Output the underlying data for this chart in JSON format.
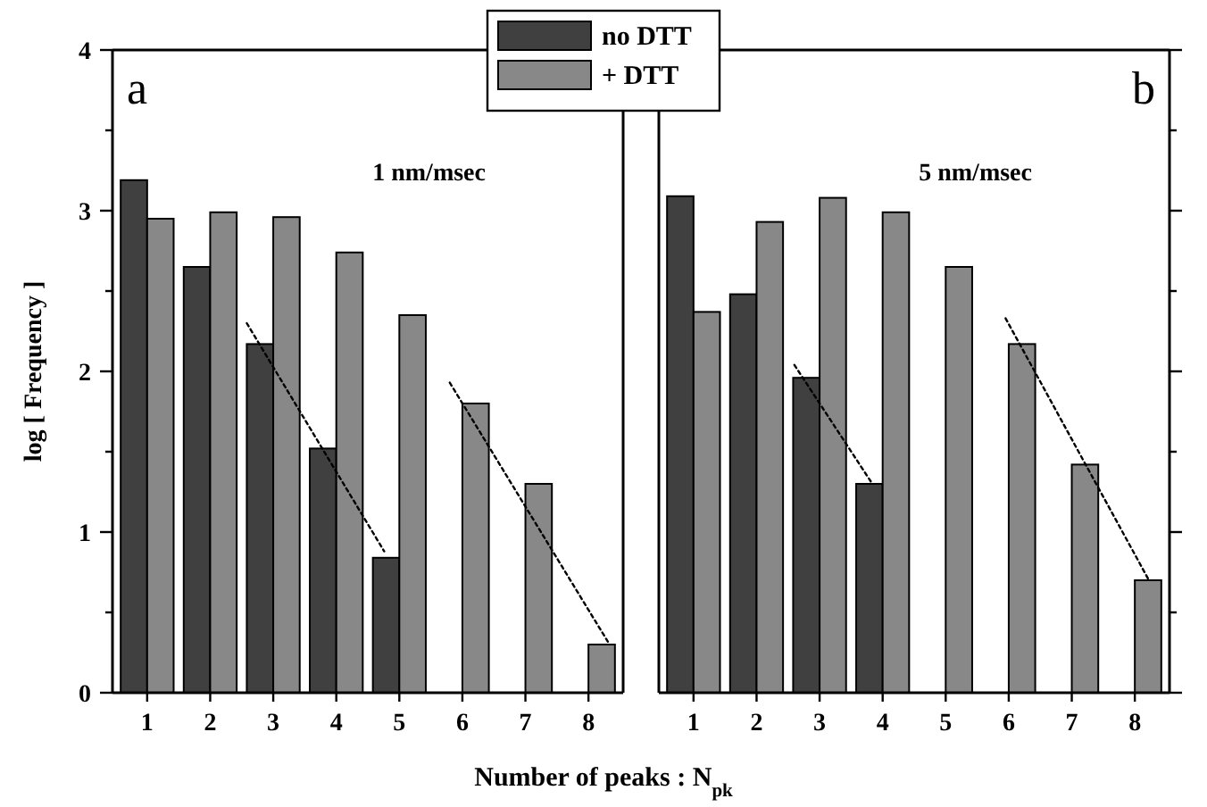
{
  "chart_data": [
    {
      "type": "bar",
      "xlabel": "Number of peaks : N$_{pk}$",
      "ylabel": "log [ Frequency ]",
      "annotations": [
        "a",
        "1 nm/msec"
      ],
      "x": [
        1,
        2,
        3,
        4,
        5,
        6,
        7,
        8
      ],
      "xlim": [
        0.45,
        8.55
      ],
      "xticks": [
        1,
        2,
        3,
        4,
        5,
        6,
        7,
        8
      ],
      "ylim": [
        0,
        4
      ],
      "yticks": [
        0,
        {
          "value": 0.5,
          "label": null
        },
        1,
        {
          "value": 1.5,
          "label": null
        },
        2,
        {
          "value": 2.5,
          "label": null
        },
        3,
        {
          "value": 3.5,
          "label": null
        },
        4
      ],
      "legend": "top",
      "series": [
        {
          "name": "no DTT",
          "color": "#404040",
          "values": [
            3.19,
            2.65,
            2.17,
            1.52,
            0.84,
            null,
            null,
            null
          ]
        },
        {
          "name": "+ DTT",
          "color": "#888888",
          "values": [
            2.95,
            2.99,
            2.96,
            2.74,
            2.35,
            1.8,
            1.3,
            0.3
          ]
        },
        {
          "type": "line",
          "color": "#000000",
          "line_style": "dotted",
          "x": [
            2.58,
            4.76
          ],
          "values": [
            2.3,
            0.88
          ]
        },
        {
          "type": "line",
          "color": "#000000",
          "line_style": "dotted",
          "x": [
            5.8,
            8.32
          ],
          "values": [
            1.93,
            0.31
          ]
        }
      ]
    },
    {
      "type": "bar",
      "annotations": [
        "b",
        "5 nm/msec"
      ],
      "x": [
        1,
        2,
        3,
        4,
        5,
        6,
        7,
        8
      ],
      "xlim": [
        0.45,
        8.55
      ],
      "xticks": [
        1,
        2,
        3,
        4,
        5,
        6,
        7,
        8
      ],
      "ylim": [
        0,
        4
      ],
      "yticks": [
        0,
        {
          "value": 0.5,
          "label": null
        },
        1,
        {
          "value": 1.5,
          "label": null
        },
        2,
        {
          "value": 2.5,
          "label": null
        },
        3,
        {
          "value": 3.5,
          "label": null
        },
        4
      ],
      "tick_labels": "x",
      "series": [
        {
          "color": "#404040",
          "values": [
            3.09,
            2.48,
            1.96,
            1.3,
            null,
            null,
            null,
            null
          ]
        },
        {
          "color": "#888888",
          "values": [
            2.37,
            2.93,
            3.08,
            2.99,
            2.65,
            2.17,
            1.42,
            0.7
          ]
        },
        {
          "type": "line",
          "color": "#000000",
          "line_style": "dotted",
          "x": [
            2.6,
            3.82
          ],
          "values": [
            2.04,
            1.31
          ]
        },
        {
          "type": "line",
          "color": "#000000",
          "line_style": "dotted",
          "x": [
            5.95,
            8.21
          ],
          "values": [
            2.33,
            0.71
          ]
        }
      ]
    }
  ]
}
